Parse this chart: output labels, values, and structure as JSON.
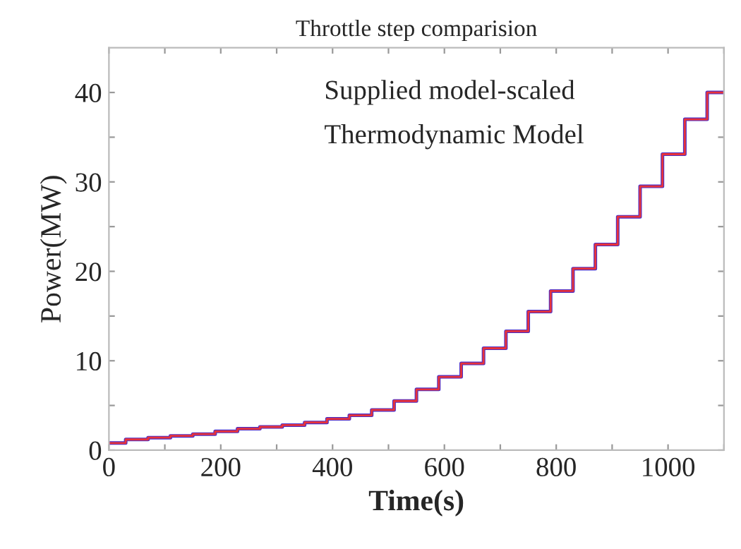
{
  "chart_data": {
    "type": "step",
    "title": "Throttle step comparision",
    "xlabel": "Time(s)",
    "ylabel": "Power(MW)",
    "annotations": [
      "Supplied model-scaled",
      "Thermodynamic Model"
    ],
    "x": [
      0,
      30,
      70,
      110,
      150,
      190,
      230,
      270,
      310,
      350,
      390,
      430,
      470,
      510,
      550,
      590,
      630,
      670,
      710,
      750,
      790,
      830,
      870,
      910,
      950,
      990,
      1030,
      1070,
      1100
    ],
    "series": [
      {
        "color": "#4b2fc8",
        "values": [
          0.8,
          1.2,
          1.4,
          1.6,
          1.8,
          2.1,
          2.4,
          2.6,
          2.8,
          3.1,
          3.5,
          3.9,
          4.5,
          5.5,
          6.8,
          8.2,
          9.7,
          11.4,
          13.3,
          15.5,
          17.8,
          20.3,
          23.0,
          26.1,
          29.5,
          33.1,
          37.0,
          40.0,
          40.0
        ]
      },
      {
        "color": "#e8333a",
        "values": [
          0.8,
          1.2,
          1.4,
          1.6,
          1.8,
          2.1,
          2.4,
          2.6,
          2.8,
          3.1,
          3.5,
          3.9,
          4.5,
          5.5,
          6.8,
          8.2,
          9.7,
          11.4,
          13.3,
          15.5,
          17.8,
          20.3,
          23.0,
          26.1,
          29.5,
          33.1,
          37.0,
          40.0,
          40.0
        ]
      }
    ],
    "xlim": [
      0,
      1100
    ],
    "ylim": [
      0,
      45
    ],
    "xticks": [
      0,
      {
        "value": 100,
        "label": null
      },
      200,
      {
        "value": 300,
        "label": null
      },
      400,
      {
        "value": 500,
        "label": null
      },
      600,
      {
        "value": 700,
        "label": null
      },
      800,
      {
        "value": 900,
        "label": null
      },
      1000,
      {
        "value": 1100,
        "label": null
      }
    ],
    "yticks": [
      0,
      {
        "value": 5,
        "label": null
      },
      10,
      {
        "value": 15,
        "label": null
      },
      20,
      {
        "value": 25,
        "label": null
      },
      30,
      {
        "value": 35,
        "label": null
      },
      40
    ],
    "grid": false,
    "line_style": "solid",
    "marker": "none"
  }
}
